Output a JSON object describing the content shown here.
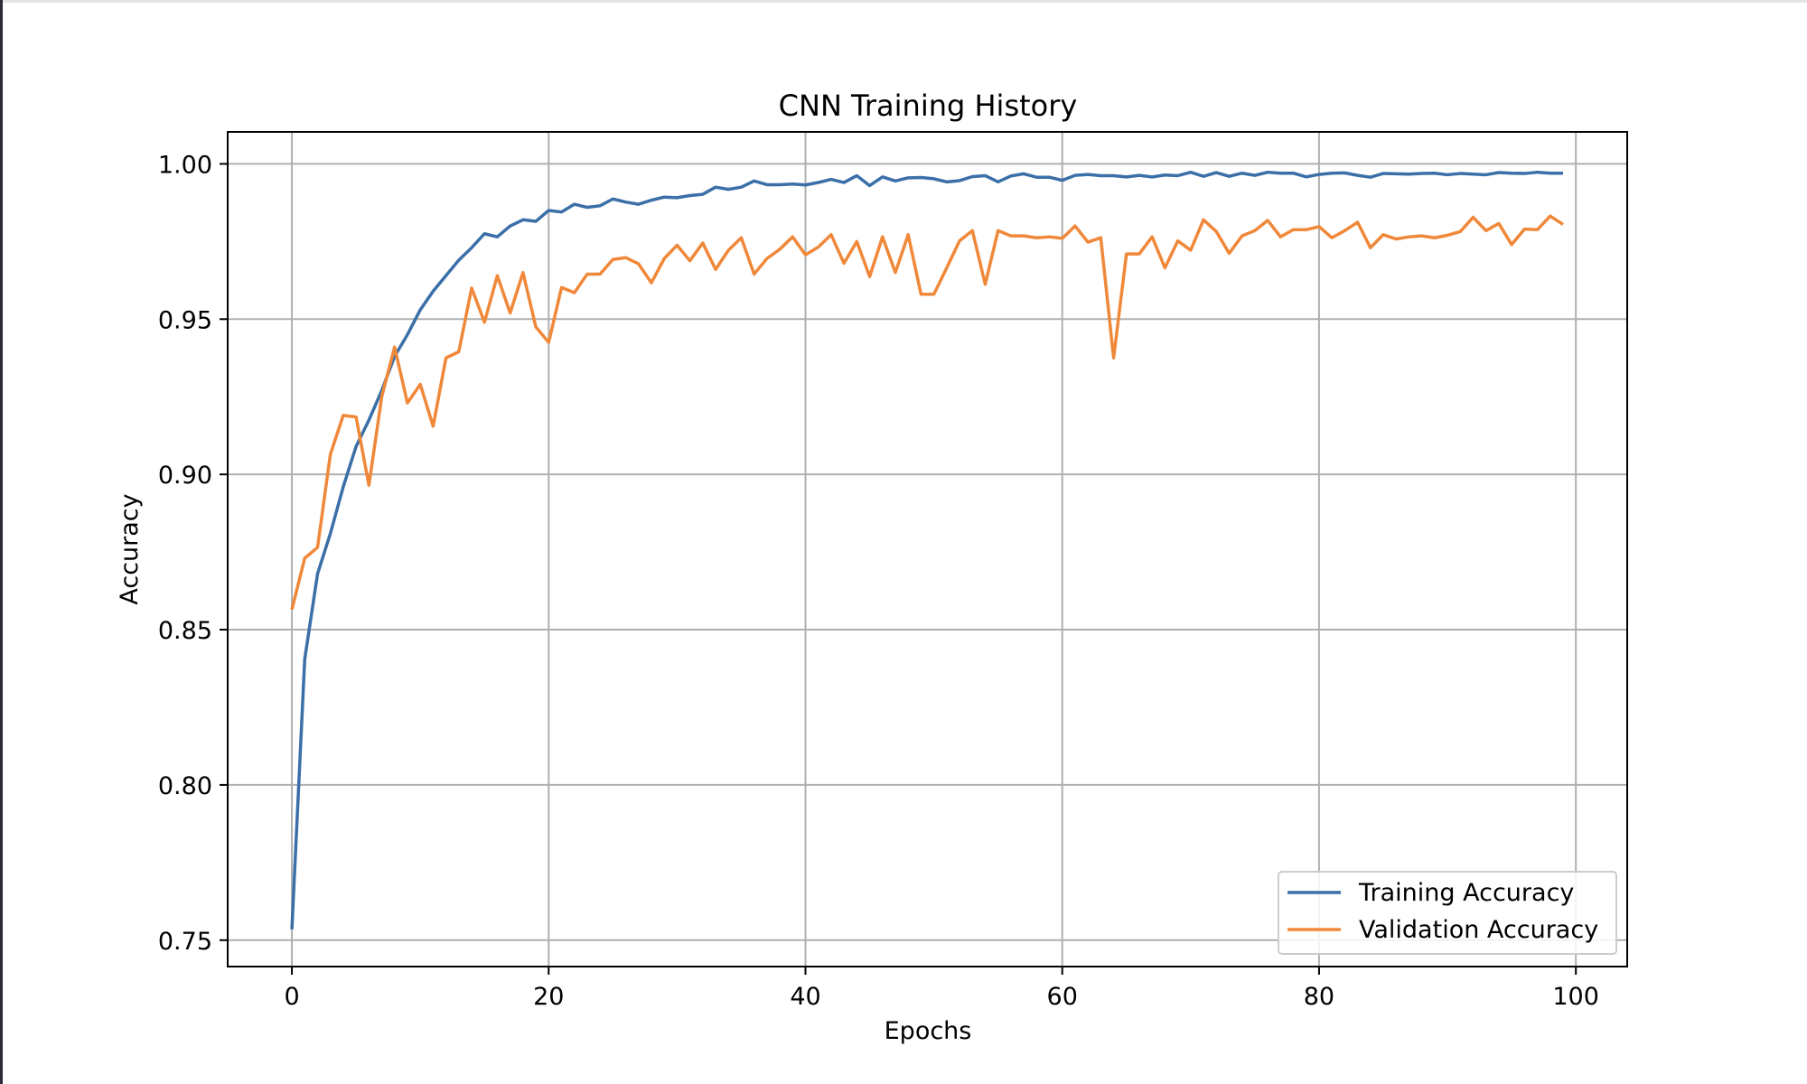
{
  "chart_data": {
    "type": "line",
    "title": "CNN Training History",
    "xlabel": "Epochs",
    "ylabel": "Accuracy",
    "xlim": [
      -5,
      104
    ],
    "ylim": [
      0.7415,
      1.0103
    ],
    "xticks": [
      0,
      20,
      40,
      60,
      80,
      100
    ],
    "xtick_labels": [
      "0",
      "20",
      "40",
      "60",
      "80",
      "100"
    ],
    "yticks": [
      0.75,
      0.8,
      0.85,
      0.9,
      0.95,
      1.0
    ],
    "ytick_labels": [
      "0.75",
      "0.80",
      "0.85",
      "0.90",
      "0.95",
      "1.00"
    ],
    "grid": true,
    "legend_position": "lower right",
    "x": [
      0,
      1,
      2,
      3,
      4,
      5,
      6,
      7,
      8,
      9,
      10,
      11,
      12,
      13,
      14,
      15,
      16,
      17,
      18,
      19,
      20,
      21,
      22,
      23,
      24,
      25,
      26,
      27,
      28,
      29,
      30,
      31,
      32,
      33,
      34,
      35,
      36,
      37,
      38,
      39,
      40,
      41,
      42,
      43,
      44,
      45,
      46,
      47,
      48,
      49,
      50,
      51,
      52,
      53,
      54,
      55,
      56,
      57,
      58,
      59,
      60,
      61,
      62,
      63,
      64,
      65,
      66,
      67,
      68,
      69,
      70,
      71,
      72,
      73,
      74,
      75,
      76,
      77,
      78,
      79,
      80,
      81,
      82,
      83,
      84,
      85,
      86,
      87,
      88,
      89,
      90,
      91,
      92,
      93,
      94,
      95,
      96,
      97,
      98,
      99
    ],
    "series": [
      {
        "name": "Training Accuracy",
        "color": "#3a6fa8",
        "values": [
          0.7535,
          0.8405,
          0.868,
          0.881,
          0.896,
          0.909,
          0.9175,
          0.927,
          0.938,
          0.945,
          0.953,
          0.959,
          0.964,
          0.969,
          0.973,
          0.9775,
          0.9765,
          0.98,
          0.982,
          0.9815,
          0.985,
          0.9845,
          0.987,
          0.986,
          0.9865,
          0.9887,
          0.9877,
          0.987,
          0.9883,
          0.9893,
          0.9891,
          0.9898,
          0.9902,
          0.9925,
          0.9918,
          0.9925,
          0.9945,
          0.9933,
          0.9933,
          0.9935,
          0.9932,
          0.994,
          0.995,
          0.994,
          0.9962,
          0.993,
          0.9958,
          0.9945,
          0.9955,
          0.9956,
          0.9952,
          0.9942,
          0.9946,
          0.9959,
          0.9962,
          0.9942,
          0.9961,
          0.9968,
          0.9957,
          0.9957,
          0.9947,
          0.9963,
          0.9966,
          0.9962,
          0.9962,
          0.9958,
          0.9963,
          0.9958,
          0.9964,
          0.9962,
          0.9973,
          0.996,
          0.9972,
          0.996,
          0.997,
          0.9963,
          0.9973,
          0.997,
          0.997,
          0.9958,
          0.9966,
          0.997,
          0.9971,
          0.9963,
          0.9957,
          0.9969,
          0.9968,
          0.9967,
          0.9969,
          0.997,
          0.9965,
          0.9969,
          0.9967,
          0.9965,
          0.9972,
          0.997,
          0.9969,
          0.9973,
          0.997,
          0.997
        ]
      },
      {
        "name": "Validation Accuracy",
        "color": "#f0883a",
        "values": [
          0.8565,
          0.873,
          0.8765,
          0.9065,
          0.919,
          0.9185,
          0.8965,
          0.925,
          0.941,
          0.923,
          0.929,
          0.9155,
          0.9375,
          0.9395,
          0.96,
          0.949,
          0.964,
          0.952,
          0.965,
          0.9475,
          0.9425,
          0.9602,
          0.9585,
          0.9645,
          0.9645,
          0.9692,
          0.9698,
          0.9678,
          0.9617,
          0.9695,
          0.9738,
          0.9688,
          0.9745,
          0.966,
          0.9722,
          0.9762,
          0.9645,
          0.9695,
          0.9725,
          0.9765,
          0.9707,
          0.9732,
          0.9772,
          0.968,
          0.975,
          0.9637,
          0.9765,
          0.965,
          0.9772,
          0.958,
          0.958,
          0.9665,
          0.9752,
          0.9785,
          0.9612,
          0.9785,
          0.9768,
          0.9768,
          0.9762,
          0.9765,
          0.976,
          0.98,
          0.9748,
          0.9762,
          0.9375,
          0.971,
          0.971,
          0.9765,
          0.9665,
          0.9752,
          0.9722,
          0.982,
          0.9782,
          0.9712,
          0.9768,
          0.9785,
          0.9818,
          0.9765,
          0.9788,
          0.9788,
          0.9798,
          0.9762,
          0.9785,
          0.9812,
          0.973,
          0.9772,
          0.9758,
          0.9765,
          0.9768,
          0.9762,
          0.977,
          0.9782,
          0.9828,
          0.9785,
          0.9808,
          0.974,
          0.979,
          0.9788,
          0.9832,
          0.9805
        ]
      }
    ]
  }
}
